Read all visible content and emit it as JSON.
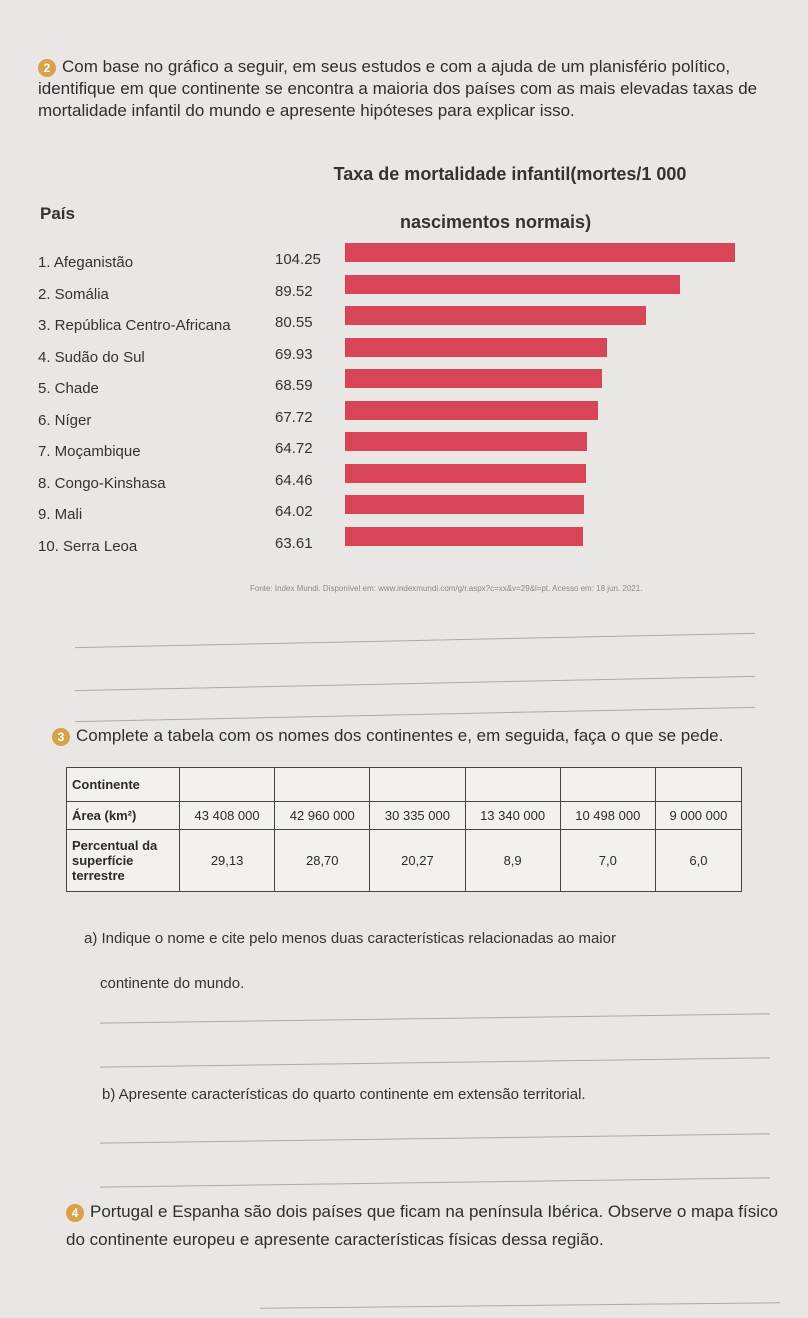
{
  "q2": {
    "number": "2",
    "text": "Com base no gráfico a seguir, em seus estudos e com a ajuda de um planisfério político, identifique em que continente se encontra a maioria dos países com as mais elevadas taxas de mortalidade infantil do mundo e apresente hipóteses para explicar isso."
  },
  "chart": {
    "col_country": "País",
    "title_line1": "Taxa de mortalidade infantil(mortes/1 000",
    "title_line2": "nascimentos normais)",
    "source": "Fonte: Index Mundi. Disponível em: www.indexmundi.com/g/r.aspx?c=xx&v=29&l=pt. Acesso em: 18 jun. 2021."
  },
  "chart_data": {
    "type": "bar",
    "categories": [
      "1. Afeganistão",
      "2. Somália",
      "3. República Centro-Africana",
      "4. Sudão do Sul",
      "5. Chade",
      "6. Níger",
      "7. Moçambique",
      "8. Congo-Kinshasa",
      "9. Mali",
      "10. Serra Leoa"
    ],
    "value_labels": [
      "104.25",
      "89.52",
      "80.55",
      "69.93",
      "68.59",
      "67.72",
      "64.72",
      "64.46",
      "64.02",
      "63.61"
    ],
    "values": [
      104.25,
      89.52,
      80.55,
      69.93,
      68.59,
      67.72,
      64.72,
      64.46,
      64.02,
      63.61
    ],
    "bar_color": "#d84558"
  },
  "q3": {
    "number": "3",
    "text": "Complete a tabela com os nomes dos continentes e, em seguida, faça o que se pede.",
    "row_headers": [
      "Continente",
      "Área (km²)",
      "Percentual da superfície terrestre"
    ],
    "areas": [
      "43 408 000",
      "42 960 000",
      "30 335 000",
      "13 340 000",
      "10 498 000",
      "9 000 000"
    ],
    "percents": [
      "29,13",
      "28,70",
      "20,27",
      "8,9",
      "7,0",
      "6,0"
    ],
    "a_text1": "a) Indique o nome e cite pelo menos duas características relacionadas ao maior",
    "a_text2": "continente do mundo.",
    "b_text": "b) Apresente características do quarto continente em extensão territorial."
  },
  "q4": {
    "number": "4",
    "text": "Portugal e Espanha são dois países que ficam na península Ibérica. Observe o mapa físico do continente europeu e apresente características físicas dessa região."
  }
}
